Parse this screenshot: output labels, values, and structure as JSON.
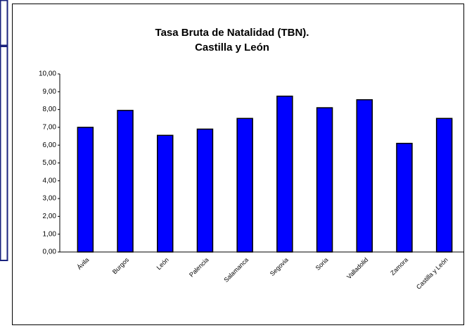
{
  "chart_data": {
    "type": "bar",
    "title": [
      "Tasa Bruta de Natalidad (TBN).",
      "Castilla y León"
    ],
    "categories": [
      "Ávila",
      "Burgos",
      "León",
      "Palencia",
      "Salamanca",
      "Segovia",
      "Soria",
      "Valladolid",
      "Zamora",
      "Castilla y León"
    ],
    "values": [
      7.0,
      7.95,
      6.55,
      6.9,
      7.5,
      8.75,
      8.1,
      8.55,
      6.1,
      7.5
    ],
    "color": "#0000ff",
    "ylim": [
      0,
      10
    ],
    "yticks": [
      {
        "value": 0,
        "label": "0,00"
      },
      {
        "value": 1,
        "label": "1,00"
      },
      {
        "value": 2,
        "label": "2,00"
      },
      {
        "value": 3,
        "label": "3,00"
      },
      {
        "value": 4,
        "label": "4,00"
      },
      {
        "value": 5,
        "label": "5,00"
      },
      {
        "value": 6,
        "label": "6,00"
      },
      {
        "value": 7,
        "label": "7,00"
      },
      {
        "value": 8,
        "label": "8,00"
      },
      {
        "value": 9,
        "label": "9,00"
      },
      {
        "value": 10,
        "label": "10,00"
      }
    ],
    "grid": false
  }
}
